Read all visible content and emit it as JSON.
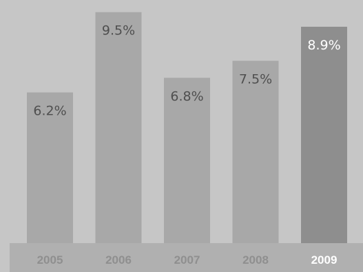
{
  "chart_data": {
    "type": "bar",
    "categories": [
      "2005",
      "2006",
      "2007",
      "2008",
      "2009"
    ],
    "values": [
      6.2,
      9.5,
      6.8,
      7.5,
      8.9
    ],
    "value_labels": [
      "6.2%",
      "9.5%",
      "6.8%",
      "7.5%",
      "8.9%"
    ],
    "highlight_category": "2009",
    "title": "",
    "xlabel": "",
    "ylabel": "",
    "ylim": [
      0,
      10
    ],
    "grid": false,
    "legend": "none",
    "colors": {
      "background": "#c6c6c6",
      "bar": "#a8a8a8",
      "bar_highlight": "#8e8e8e",
      "axis_band": "#b0b0b0",
      "value_text": "#4f4f4f",
      "tick_text": "#8f8f8f",
      "highlight_text": "#ffffff"
    }
  }
}
